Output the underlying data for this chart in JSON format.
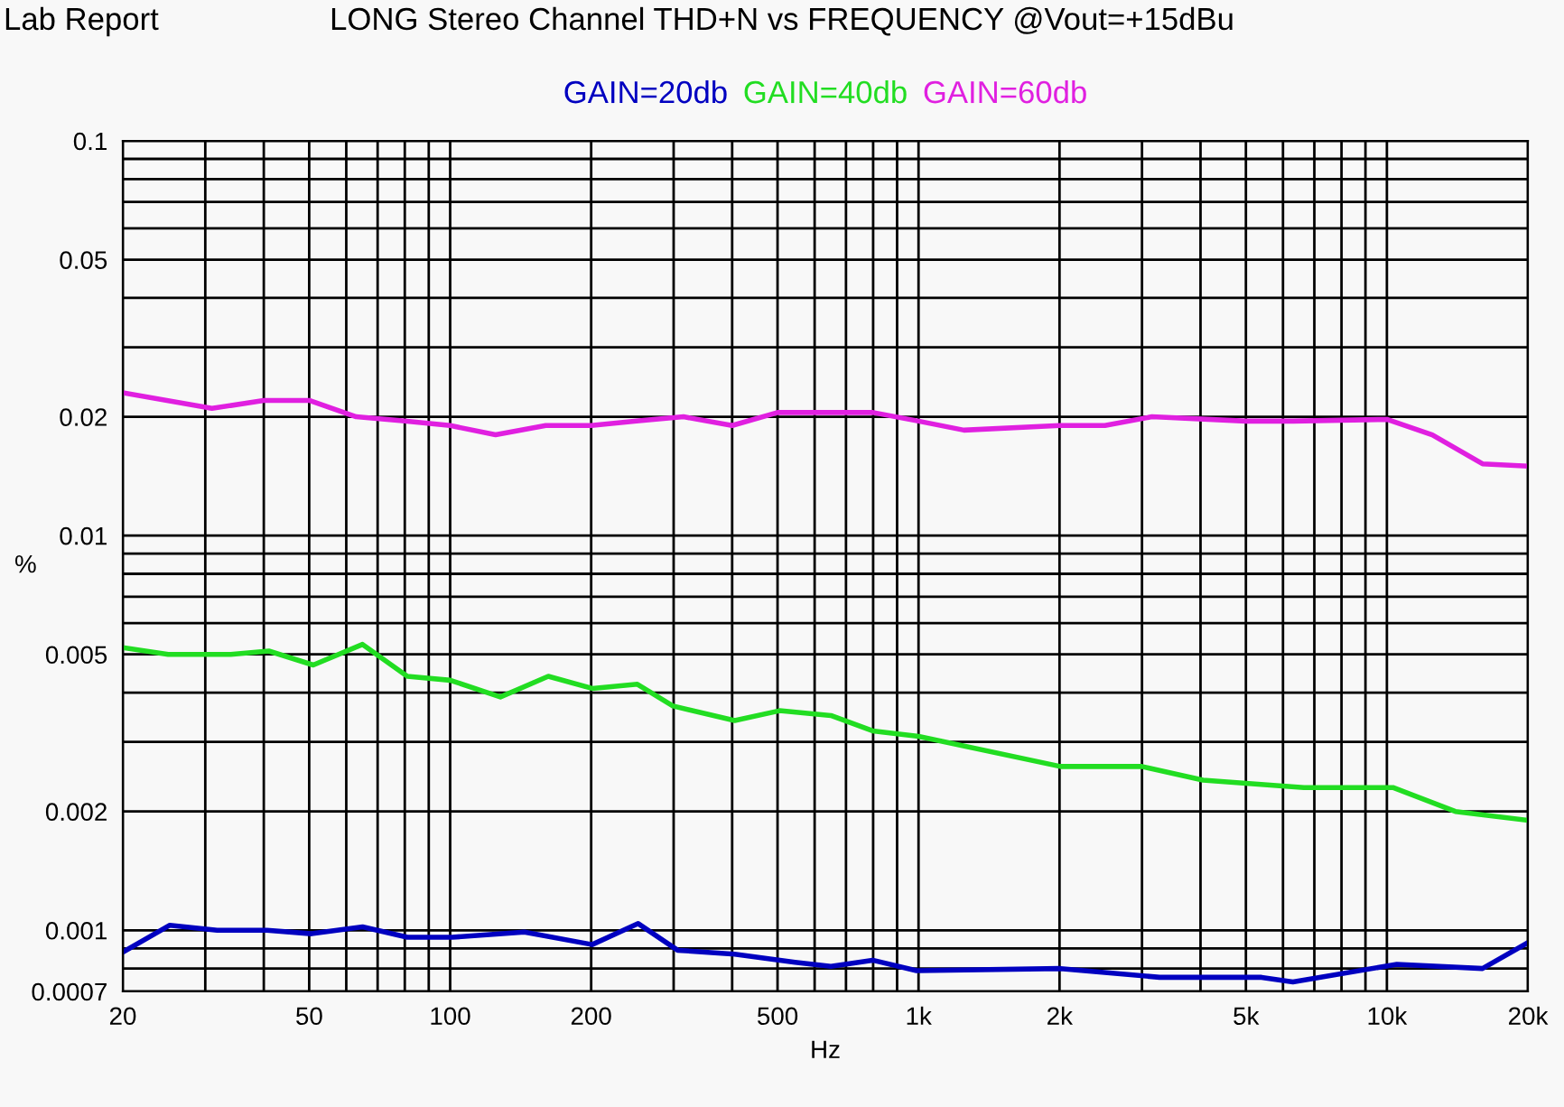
{
  "chart_data": {
    "type": "line",
    "title": "LONG Stereo Channel THD+N vs FREQUENCY @Vout=+15dBu",
    "xlabel": "Hz",
    "ylabel": "%",
    "annotations": [
      "Lab Report"
    ],
    "log": "xy",
    "grid": true,
    "legend": "top",
    "line_style": "solid",
    "marker": "none",
    "xlim": [
      20,
      20000
    ],
    "ylim": [
      0.0007,
      0.1
    ],
    "xticks": [
      20,
      {
        "value": 30,
        "label": null
      },
      {
        "value": 40,
        "label": null
      },
      50,
      {
        "value": 60,
        "label": null
      },
      {
        "value": 70,
        "label": null
      },
      {
        "value": 80,
        "label": null
      },
      {
        "value": 90,
        "label": null
      },
      100,
      200,
      {
        "value": 300,
        "label": null
      },
      {
        "value": 400,
        "label": null
      },
      500,
      {
        "value": 600,
        "label": null
      },
      {
        "value": 700,
        "label": null
      },
      {
        "value": 800,
        "label": null
      },
      {
        "value": 900,
        "label": null
      },
      {
        "value": 1000,
        "label": "1k"
      },
      {
        "value": 2000,
        "label": "2k"
      },
      {
        "value": 3000,
        "label": null
      },
      {
        "value": 4000,
        "label": null
      },
      {
        "value": 5000,
        "label": "5k"
      },
      {
        "value": 6000,
        "label": null
      },
      {
        "value": 7000,
        "label": null
      },
      {
        "value": 8000,
        "label": null
      },
      {
        "value": 9000,
        "label": null
      },
      {
        "value": 10000,
        "label": "10k"
      },
      {
        "value": 20000,
        "label": "20k"
      }
    ],
    "yticks": [
      0.0007,
      {
        "value": 0.0008,
        "label": null
      },
      {
        "value": 0.0009,
        "label": null
      },
      0.001,
      0.002,
      {
        "value": 0.003,
        "label": null
      },
      {
        "value": 0.004,
        "label": null
      },
      0.005,
      {
        "value": 0.006,
        "label": null
      },
      {
        "value": 0.007,
        "label": null
      },
      {
        "value": 0.008,
        "label": null
      },
      {
        "value": 0.009,
        "label": null
      },
      0.01,
      0.02,
      {
        "value": 0.03,
        "label": null
      },
      {
        "value": 0.04,
        "label": null
      },
      0.05,
      {
        "value": 0.06,
        "label": null
      },
      {
        "value": 0.07,
        "label": null
      },
      {
        "value": 0.08,
        "label": null
      },
      {
        "value": 0.09,
        "label": null
      },
      0.1
    ],
    "series": [
      {
        "name": "GAIN=20db",
        "color": "#0000c0",
        "x": [
          20,
          25.2,
          31.8,
          40.6,
          50.6,
          65,
          81,
          101,
          144,
          201,
          252,
          306,
          405,
          545,
          650,
          798,
          990,
          2010,
          3270,
          5400,
          6300,
          10500,
          16000,
          20000
        ],
        "values": [
          0.00088,
          0.00103,
          0.001,
          0.001,
          0.00098,
          0.00102,
          0.00096,
          0.00096,
          0.00099,
          0.00092,
          0.00104,
          0.00089,
          0.00087,
          0.00083,
          0.00081,
          0.00084,
          0.00079,
          0.0008,
          0.00076,
          0.00076,
          0.00074,
          0.00082,
          0.0008,
          0.00093
        ]
      },
      {
        "name": "GAIN=40db",
        "color": "#22dd22",
        "x": [
          20,
          25,
          34,
          41,
          51,
          65,
          81,
          100,
          128,
          162,
          201,
          251,
          299,
          405,
          505,
          650,
          798,
          1000,
          2010,
          3000,
          4050,
          6650,
          10300,
          14000,
          20000
        ],
        "values": [
          0.0052,
          0.005,
          0.005,
          0.0051,
          0.0047,
          0.0053,
          0.0044,
          0.0043,
          0.0039,
          0.0044,
          0.0041,
          0.0042,
          0.0037,
          0.0034,
          0.0036,
          0.0035,
          0.0032,
          0.0031,
          0.0026,
          0.0026,
          0.0024,
          0.0023,
          0.0023,
          0.002,
          0.0019
        ]
      },
      {
        "name": "GAIN=60db",
        "color": "#e020e0",
        "x": [
          20,
          31,
          40,
          50,
          63,
          80,
          100,
          125,
          160,
          200,
          250,
          315,
          400,
          500,
          800,
          1000,
          1250,
          2000,
          2500,
          3150,
          5000,
          6300,
          10000,
          12500,
          16000,
          20000
        ],
        "values": [
          0.023,
          0.021,
          0.022,
          0.022,
          0.02,
          0.0195,
          0.019,
          0.018,
          0.019,
          0.019,
          0.0195,
          0.02,
          0.019,
          0.0205,
          0.0205,
          0.0195,
          0.0185,
          0.019,
          0.019,
          0.02,
          0.0195,
          0.0195,
          0.0197,
          0.018,
          0.0152,
          0.015
        ]
      }
    ]
  }
}
